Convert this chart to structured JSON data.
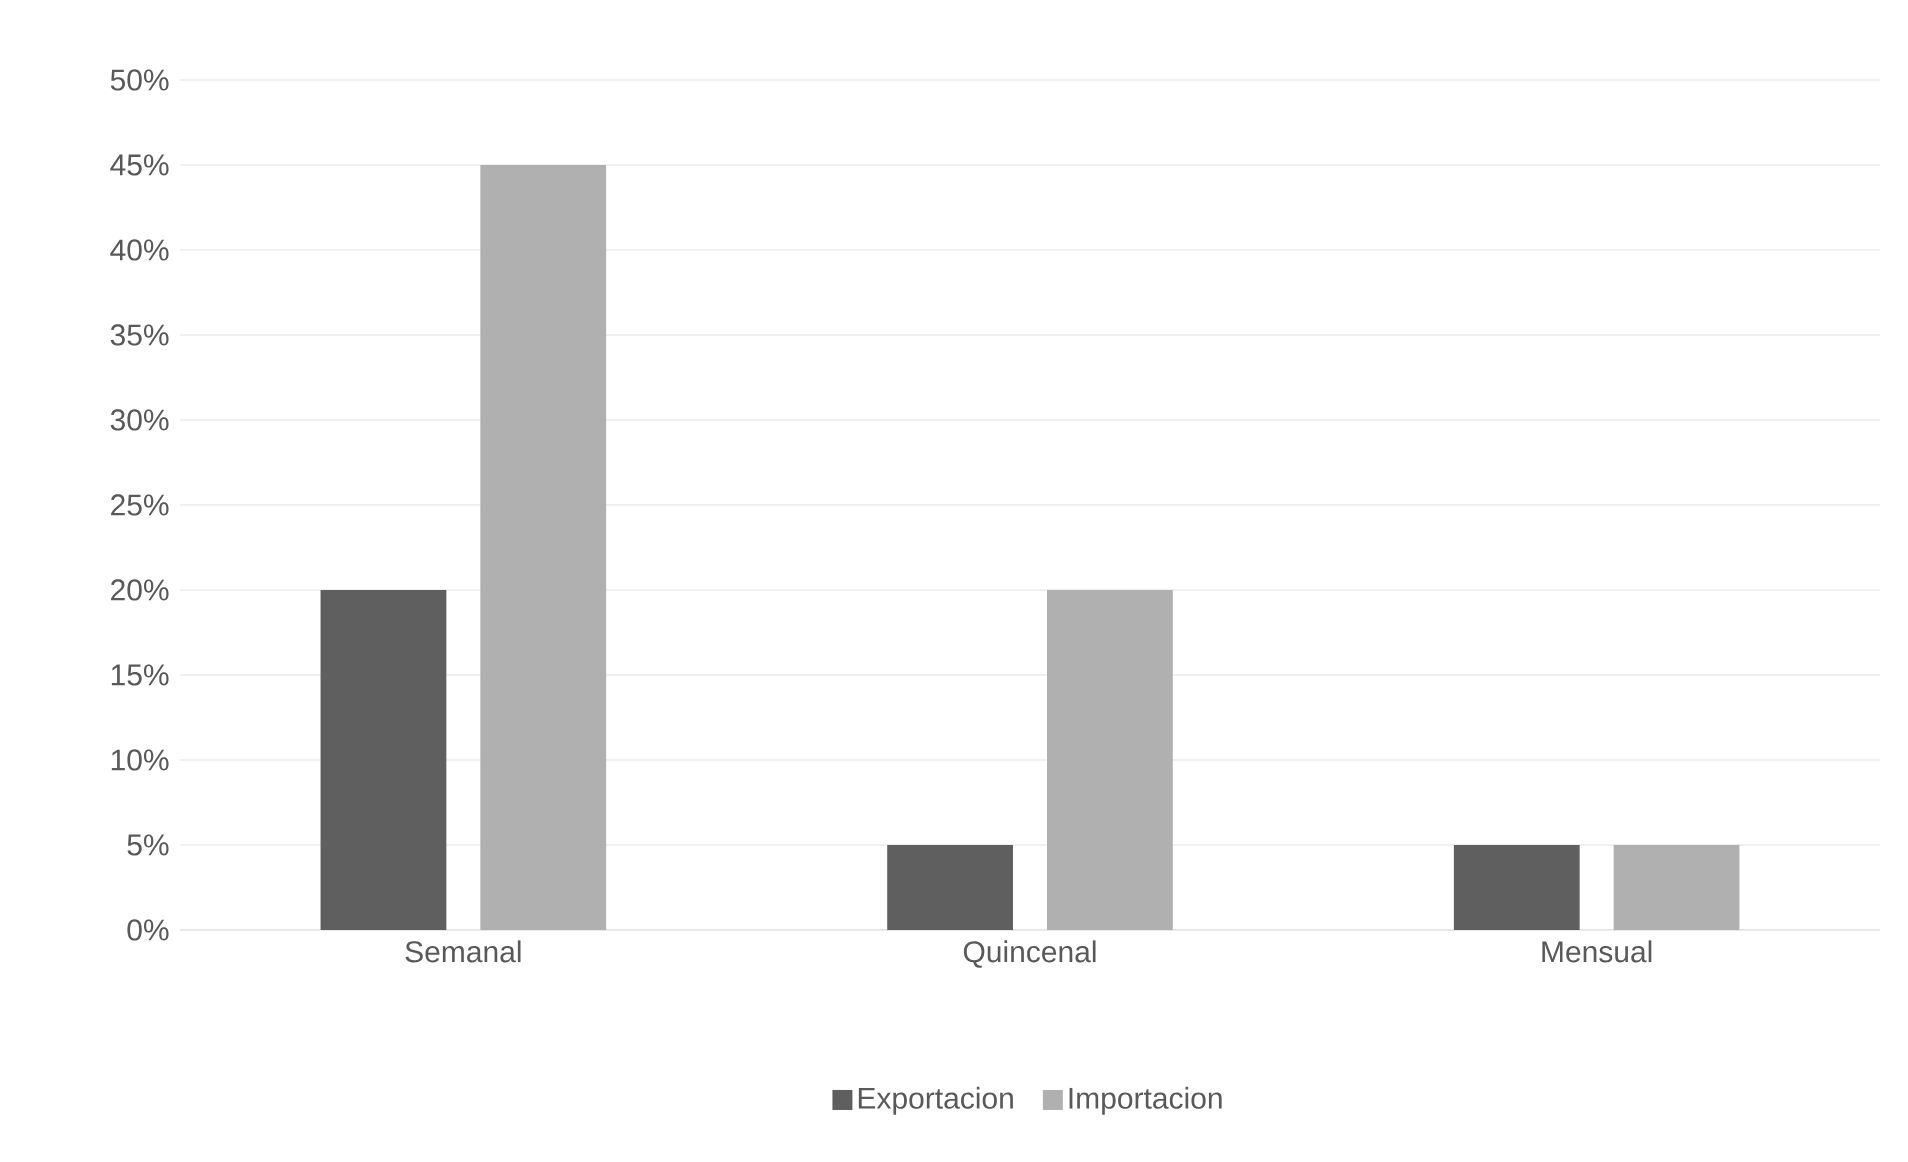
{
  "chart_data": {
    "type": "bar",
    "categories": [
      "Semanal",
      "Quincenal",
      "Mensual"
    ],
    "series": [
      {
        "name": "Exportacion",
        "color": "#5f5f5f",
        "values": [
          20,
          5,
          5
        ]
      },
      {
        "name": "Importacion",
        "color": "#b0b0b0",
        "values": [
          45,
          20,
          5
        ]
      }
    ],
    "ylim": [
      0,
      50
    ],
    "yticks": [
      {
        "value": 0,
        "label": "0%"
      },
      {
        "value": 5,
        "label": "5%"
      },
      {
        "value": 10,
        "label": "10%"
      },
      {
        "value": 15,
        "label": "15%"
      },
      {
        "value": 20,
        "label": "20%"
      },
      {
        "value": 25,
        "label": "25%"
      },
      {
        "value": 30,
        "label": "30%"
      },
      {
        "value": 35,
        "label": "35%"
      },
      {
        "value": 40,
        "label": "40%"
      },
      {
        "value": 45,
        "label": "45%"
      },
      {
        "value": 50,
        "label": "50%"
      }
    ],
    "grid": "y",
    "legend": "bottom"
  }
}
